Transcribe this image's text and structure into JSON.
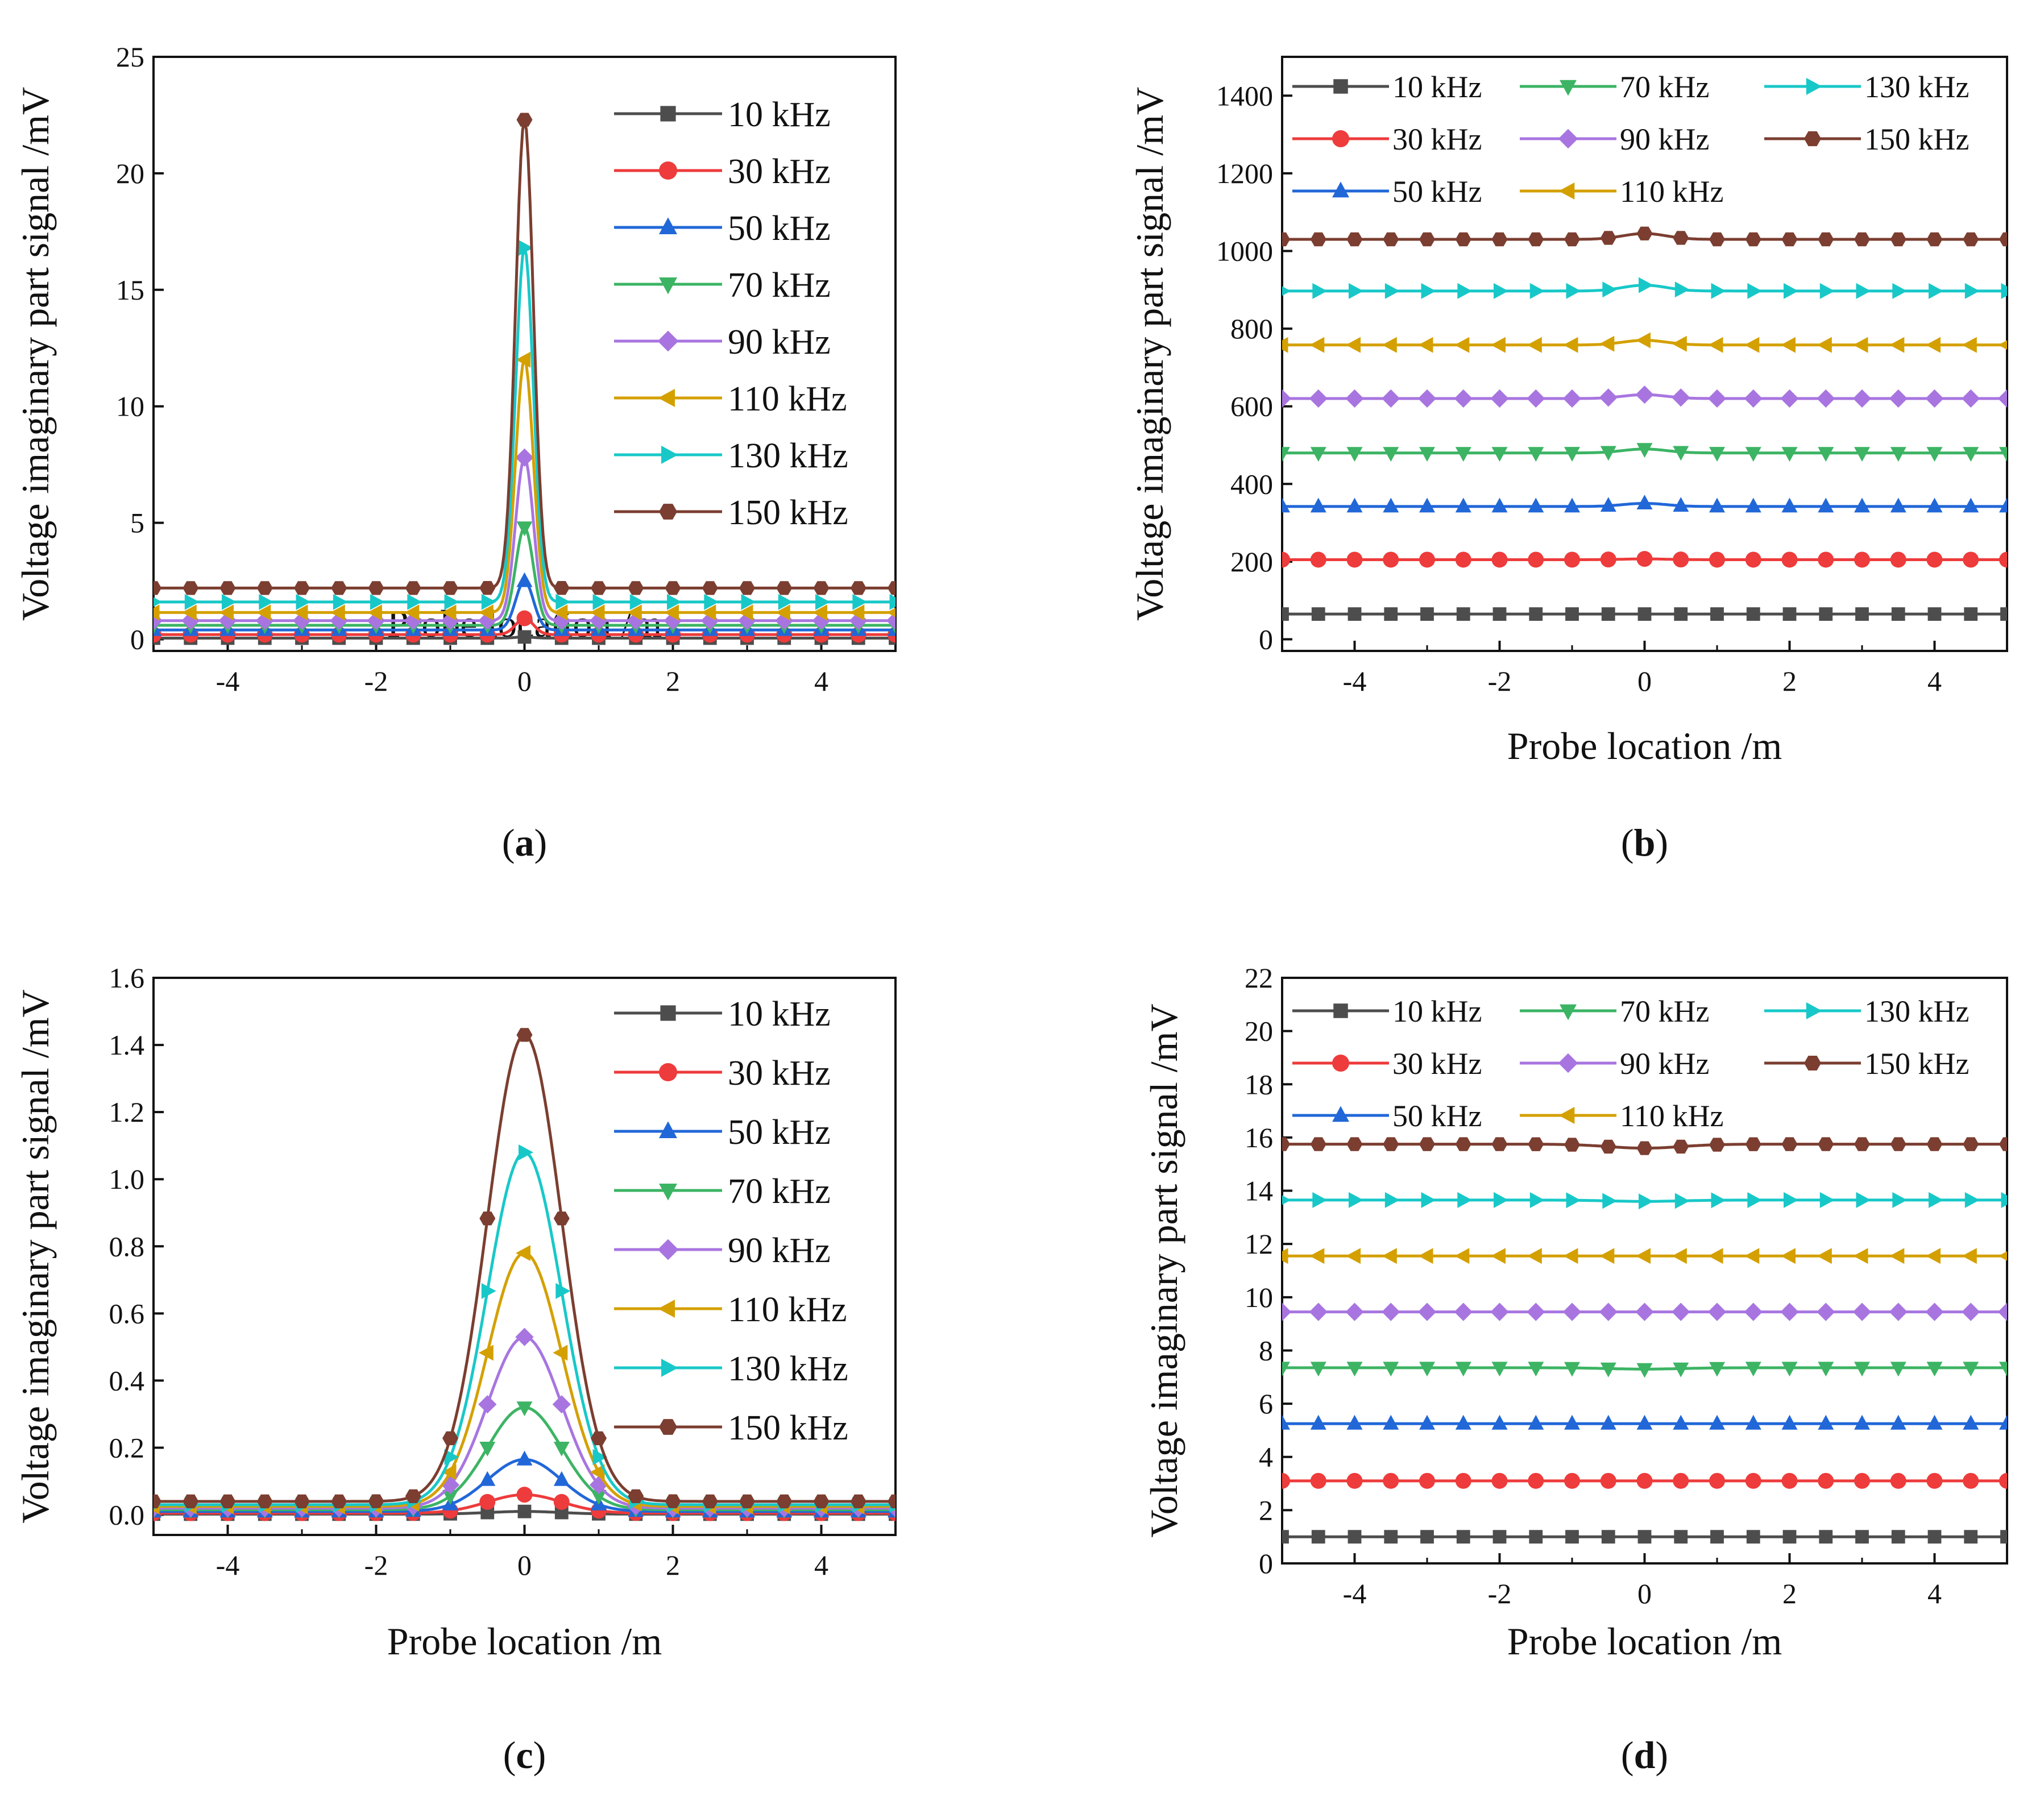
{
  "series_colors": {
    "10 kHz": "#4d4d4d",
    "30 kHz": "#ee3b3b",
    "50 kHz": "#2167d8",
    "70 kHz": "#3cb464",
    "90 kHz": "#a875e0",
    "110 kHz": "#d4a000",
    "130 kHz": "#18c8c8",
    "150 kHz": "#7b3e30"
  },
  "chart_data": [
    {
      "id": "a",
      "type": "line",
      "panel_label": "a",
      "xlabel": "Probe location  /m",
      "ylabel": "Voltage imaginary part signal /mV",
      "xlim": [
        -5,
        5
      ],
      "ylim": [
        -0.5,
        25
      ],
      "xticks": [
        -4,
        -2,
        0,
        2,
        4
      ],
      "yticks": [
        0,
        5,
        10,
        15,
        20,
        25
      ],
      "legend": "right-top-column",
      "x": [
        -5,
        -4.5,
        -4,
        -3.5,
        -3,
        -2.5,
        -2,
        -1.5,
        -1,
        -0.5,
        0,
        0.5,
        1,
        1.5,
        2,
        2.5,
        3,
        3.5,
        4,
        4.5,
        5
      ],
      "series": [
        {
          "name": "10 kHz",
          "marker": "square",
          "baseline": 0.05,
          "peak": 0.1,
          "width": 0.12
        },
        {
          "name": "30 kHz",
          "marker": "circle",
          "baseline": 0.2,
          "peak": 0.9,
          "width": 0.12
        },
        {
          "name": "50 kHz",
          "marker": "triangle-up",
          "baseline": 0.4,
          "peak": 2.5,
          "width": 0.12
        },
        {
          "name": "70 kHz",
          "marker": "triangle-down",
          "baseline": 0.6,
          "peak": 4.8,
          "width": 0.12
        },
        {
          "name": "90 kHz",
          "marker": "diamond",
          "baseline": 0.8,
          "peak": 7.8,
          "width": 0.12
        },
        {
          "name": "110 kHz",
          "marker": "triangle-left",
          "baseline": 1.15,
          "peak": 12.0,
          "width": 0.12
        },
        {
          "name": "130 kHz",
          "marker": "triangle-right",
          "baseline": 1.6,
          "peak": 16.8,
          "width": 0.12
        },
        {
          "name": "150 kHz",
          "marker": "hexagon",
          "baseline": 2.2,
          "peak": 22.3,
          "width": 0.12
        }
      ]
    },
    {
      "id": "b",
      "type": "line",
      "panel_label": "b",
      "xlabel": "Probe location  /m",
      "ylabel": "Voltage imaginary part signal /mV",
      "xlim": [
        -5,
        5
      ],
      "ylim": [
        -30,
        1500
      ],
      "xticks": [
        -4,
        -2,
        0,
        2,
        4
      ],
      "yticks": [
        0,
        200,
        400,
        600,
        800,
        1000,
        1200,
        1400
      ],
      "legend": "top-three-columns",
      "x": [
        -5,
        -4.5,
        -4,
        -3.5,
        -3,
        -2.5,
        -2,
        -1.5,
        -1,
        -0.5,
        0,
        0.5,
        1,
        1.5,
        2,
        2.5,
        3,
        3.5,
        4,
        4.5,
        5
      ],
      "series": [
        {
          "name": "10 kHz",
          "marker": "square",
          "baseline": 65,
          "peak": 65,
          "width": 0.3
        },
        {
          "name": "30 kHz",
          "marker": "circle",
          "baseline": 205,
          "peak": 207,
          "width": 0.3
        },
        {
          "name": "50 kHz",
          "marker": "triangle-up",
          "baseline": 342,
          "peak": 350,
          "width": 0.3
        },
        {
          "name": "70 kHz",
          "marker": "triangle-down",
          "baseline": 480,
          "peak": 490,
          "width": 0.3
        },
        {
          "name": "90 kHz",
          "marker": "diamond",
          "baseline": 620,
          "peak": 630,
          "width": 0.3
        },
        {
          "name": "110 kHz",
          "marker": "triangle-left",
          "baseline": 758,
          "peak": 770,
          "width": 0.3
        },
        {
          "name": "130 kHz",
          "marker": "triangle-right",
          "baseline": 897,
          "peak": 912,
          "width": 0.3
        },
        {
          "name": "150 kHz",
          "marker": "hexagon",
          "baseline": 1030,
          "peak": 1045,
          "width": 0.3
        }
      ]
    },
    {
      "id": "c",
      "type": "line",
      "panel_label": "c",
      "xlabel": "Probe location  /m",
      "ylabel": "Voltage imaginary part signal /mV",
      "xlim": [
        -5,
        5
      ],
      "ylim": [
        -0.06,
        1.6
      ],
      "xticks": [
        -4,
        -2,
        0,
        2,
        4
      ],
      "yticks": [
        0.0,
        0.2,
        0.4,
        0.6,
        0.8,
        1.0,
        1.2,
        1.4,
        1.6
      ],
      "legend": "right-top-column",
      "x": [
        -5,
        -4.5,
        -4,
        -3.5,
        -3,
        -2.5,
        -2,
        -1.5,
        -1,
        -0.5,
        0,
        0.5,
        1,
        1.5,
        2,
        2.5,
        3,
        3.5,
        4,
        4.5,
        5
      ],
      "series": [
        {
          "name": "10 kHz",
          "marker": "square",
          "baseline": 0.002,
          "peak": 0.01,
          "width": 0.5
        },
        {
          "name": "30 kHz",
          "marker": "circle",
          "baseline": 0.005,
          "peak": 0.06,
          "width": 0.5
        },
        {
          "name": "50 kHz",
          "marker": "triangle-up",
          "baseline": 0.01,
          "peak": 0.165,
          "width": 0.5
        },
        {
          "name": "70 kHz",
          "marker": "triangle-down",
          "baseline": 0.015,
          "peak": 0.32,
          "width": 0.5
        },
        {
          "name": "90 kHz",
          "marker": "diamond",
          "baseline": 0.02,
          "peak": 0.53,
          "width": 0.5
        },
        {
          "name": "110 kHz",
          "marker": "triangle-left",
          "baseline": 0.025,
          "peak": 0.78,
          "width": 0.5
        },
        {
          "name": "130 kHz",
          "marker": "triangle-right",
          "baseline": 0.03,
          "peak": 1.08,
          "width": 0.5
        },
        {
          "name": "150 kHz",
          "marker": "hexagon",
          "baseline": 0.04,
          "peak": 1.43,
          "width": 0.5
        }
      ]
    },
    {
      "id": "d",
      "type": "line",
      "panel_label": "d",
      "xlabel": "Probe location  /m",
      "ylabel": "Voltage imaginary part signal /mV",
      "xlim": [
        -5,
        5
      ],
      "ylim": [
        0,
        22
      ],
      "xticks": [
        -4,
        -2,
        0,
        2,
        4
      ],
      "yticks": [
        0,
        2,
        4,
        6,
        8,
        10,
        12,
        14,
        16,
        18,
        20,
        22
      ],
      "legend": "top-three-columns",
      "x": [
        -5,
        -4.5,
        -4,
        -3.5,
        -3,
        -2.5,
        -2,
        -1.5,
        -1,
        -0.5,
        0,
        0.5,
        1,
        1.5,
        2,
        2.5,
        3,
        3.5,
        4,
        4.5,
        5
      ],
      "series": [
        {
          "name": "10 kHz",
          "marker": "square",
          "baseline": 1.0,
          "peak": 1.0,
          "width": 0.5
        },
        {
          "name": "30 kHz",
          "marker": "circle",
          "baseline": 3.1,
          "peak": 3.1,
          "width": 0.5
        },
        {
          "name": "50 kHz",
          "marker": "triangle-up",
          "baseline": 5.25,
          "peak": 5.25,
          "width": 0.5
        },
        {
          "name": "70 kHz",
          "marker": "triangle-down",
          "baseline": 7.35,
          "peak": 7.3,
          "width": 0.5
        },
        {
          "name": "90 kHz",
          "marker": "diamond",
          "baseline": 9.45,
          "peak": 9.45,
          "width": 0.5
        },
        {
          "name": "110 kHz",
          "marker": "triangle-left",
          "baseline": 11.55,
          "peak": 11.55,
          "width": 0.5
        },
        {
          "name": "130 kHz",
          "marker": "triangle-right",
          "baseline": 13.65,
          "peak": 13.6,
          "width": 0.5
        },
        {
          "name": "150 kHz",
          "marker": "hexagon",
          "baseline": 15.75,
          "peak": 15.6,
          "width": 0.5
        }
      ]
    }
  ]
}
